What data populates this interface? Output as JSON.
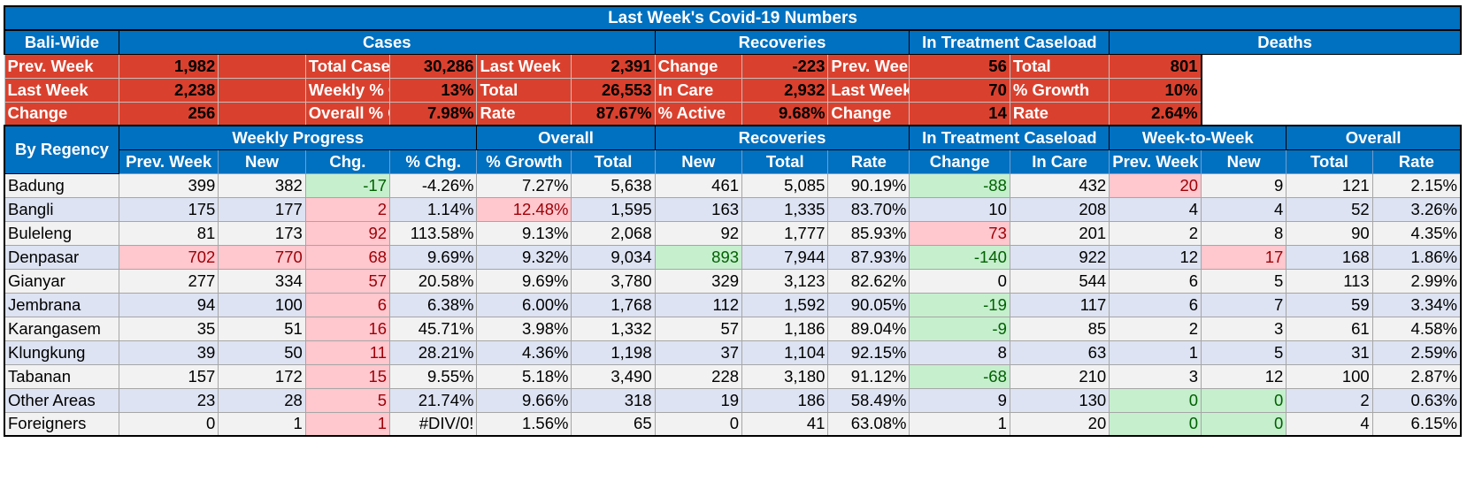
{
  "title": "Last Week's Covid-19 Numbers",
  "bali_wide_label": "Bali-Wide",
  "by_regency_label": "By Regency",
  "group_headers": {
    "cases": "Cases",
    "recoveries": "Recoveries",
    "in_treatment": "In Treatment Caseload",
    "deaths": "Deaths"
  },
  "summary": {
    "rows": [
      [
        "Prev. Week",
        "1,982",
        "",
        "Total Cases",
        "30,286",
        "Last Week",
        "2,391",
        "Change",
        "-223",
        "Prev. Week",
        "56",
        "Total",
        "801"
      ],
      [
        "Last Week",
        "2,238",
        "",
        "Weekly % Change",
        "13%",
        "Total",
        "26,553",
        "In Care",
        "2,932",
        "Last Week",
        "70",
        "% Growth",
        "10%"
      ],
      [
        "Change",
        "256",
        "",
        "Overall % Growth",
        "7.98%",
        "Rate",
        "87.67%",
        "% Active",
        "9.68%",
        "Change",
        "14",
        "Rate",
        "2.64%"
      ]
    ]
  },
  "regency_groups": {
    "weekly_progress": "Weekly Progress",
    "overall": "Overall",
    "recoveries": "Recoveries",
    "in_treatment": "In Treatment Caseload",
    "week_to_week": "Week-to-Week",
    "overall_deaths": "Overall"
  },
  "columns": [
    "Prev. Week",
    "New",
    "Chg.",
    "% Chg.",
    "% Growth",
    "Total",
    "New",
    "Total",
    "Rate",
    "Change",
    "In Care",
    "Prev. Week",
    "New",
    "Total",
    "Rate"
  ],
  "rows": [
    {
      "name": "Badung",
      "cells": [
        "399",
        "382",
        "-17",
        "-4.26%",
        "7.27%",
        "5,638",
        "461",
        "5,085",
        "90.19%",
        "-88",
        "432",
        "20",
        "9",
        "121",
        "2.15%"
      ]
    },
    {
      "name": "Bangli",
      "cells": [
        "175",
        "177",
        "2",
        "1.14%",
        "12.48%",
        "1,595",
        "163",
        "1,335",
        "83.70%",
        "10",
        "208",
        "4",
        "4",
        "52",
        "3.26%"
      ]
    },
    {
      "name": "Buleleng",
      "cells": [
        "81",
        "173",
        "92",
        "113.58%",
        "9.13%",
        "2,068",
        "92",
        "1,777",
        "85.93%",
        "73",
        "201",
        "2",
        "8",
        "90",
        "4.35%"
      ]
    },
    {
      "name": "Denpasar",
      "cells": [
        "702",
        "770",
        "68",
        "9.69%",
        "9.32%",
        "9,034",
        "893",
        "7,944",
        "87.93%",
        "-140",
        "922",
        "12",
        "17",
        "168",
        "1.86%"
      ]
    },
    {
      "name": "Gianyar",
      "cells": [
        "277",
        "334",
        "57",
        "20.58%",
        "9.69%",
        "3,780",
        "329",
        "3,123",
        "82.62%",
        "0",
        "544",
        "6",
        "5",
        "113",
        "2.99%"
      ]
    },
    {
      "name": "Jembrana",
      "cells": [
        "94",
        "100",
        "6",
        "6.38%",
        "6.00%",
        "1,768",
        "112",
        "1,592",
        "90.05%",
        "-19",
        "117",
        "6",
        "7",
        "59",
        "3.34%"
      ]
    },
    {
      "name": "Karangasem",
      "cells": [
        "35",
        "51",
        "16",
        "45.71%",
        "3.98%",
        "1,332",
        "57",
        "1,186",
        "89.04%",
        "-9",
        "85",
        "2",
        "3",
        "61",
        "4.58%"
      ]
    },
    {
      "name": "Klungkung",
      "cells": [
        "39",
        "50",
        "11",
        "28.21%",
        "4.36%",
        "1,198",
        "37",
        "1,104",
        "92.15%",
        "8",
        "63",
        "1",
        "5",
        "31",
        "2.59%"
      ]
    },
    {
      "name": "Tabanan",
      "cells": [
        "157",
        "172",
        "15",
        "9.55%",
        "5.18%",
        "3,490",
        "228",
        "3,180",
        "91.12%",
        "-68",
        "210",
        "3",
        "12",
        "100",
        "2.87%"
      ]
    },
    {
      "name": "Other Areas",
      "cells": [
        "23",
        "28",
        "5",
        "21.74%",
        "9.66%",
        "318",
        "19",
        "186",
        "58.49%",
        "9",
        "130",
        "0",
        "0",
        "2",
        "0.63%"
      ]
    },
    {
      "name": "Foreigners",
      "cells": [
        "0",
        "1",
        "1",
        "#DIV/0!",
        "1.56%",
        "65",
        "0",
        "41",
        "63.08%",
        "1",
        "20",
        "0",
        "0",
        "4",
        "6.15%"
      ]
    }
  ],
  "highlights": [
    {
      "row": 0,
      "col": 2,
      "style": "green"
    },
    {
      "row": 0,
      "col": 9,
      "style": "green"
    },
    {
      "row": 0,
      "col": 11,
      "style": "red"
    },
    {
      "row": 1,
      "col": 2,
      "style": "red"
    },
    {
      "row": 1,
      "col": 4,
      "style": "red"
    },
    {
      "row": 2,
      "col": 2,
      "style": "red"
    },
    {
      "row": 2,
      "col": 9,
      "style": "red"
    },
    {
      "row": 3,
      "col": 0,
      "style": "red"
    },
    {
      "row": 3,
      "col": 1,
      "style": "red"
    },
    {
      "row": 3,
      "col": 2,
      "style": "red"
    },
    {
      "row": 3,
      "col": 6,
      "style": "green"
    },
    {
      "row": 3,
      "col": 9,
      "style": "green"
    },
    {
      "row": 3,
      "col": 12,
      "style": "red"
    },
    {
      "row": 4,
      "col": 2,
      "style": "red"
    },
    {
      "row": 5,
      "col": 2,
      "style": "red"
    },
    {
      "row": 5,
      "col": 9,
      "style": "green"
    },
    {
      "row": 6,
      "col": 2,
      "style": "red"
    },
    {
      "row": 6,
      "col": 9,
      "style": "green"
    },
    {
      "row": 7,
      "col": 2,
      "style": "red"
    },
    {
      "row": 8,
      "col": 2,
      "style": "red"
    },
    {
      "row": 8,
      "col": 9,
      "style": "green"
    },
    {
      "row": 9,
      "col": 2,
      "style": "red"
    },
    {
      "row": 9,
      "col": 11,
      "style": "green"
    },
    {
      "row": 9,
      "col": 12,
      "style": "green"
    },
    {
      "row": 10,
      "col": 2,
      "style": "red"
    },
    {
      "row": 10,
      "col": 11,
      "style": "green"
    },
    {
      "row": 10,
      "col": 12,
      "style": "green"
    }
  ],
  "colors": {
    "header_blue": "#0070c0",
    "summary_red": "#d9412e",
    "highlight_red_bg": "#ffc7ce",
    "highlight_red_text": "#9c0006",
    "highlight_green_bg": "#c6efce",
    "highlight_green_text": "#006100",
    "row_odd": "#f2f2f2",
    "row_even": "#dde3f2"
  }
}
